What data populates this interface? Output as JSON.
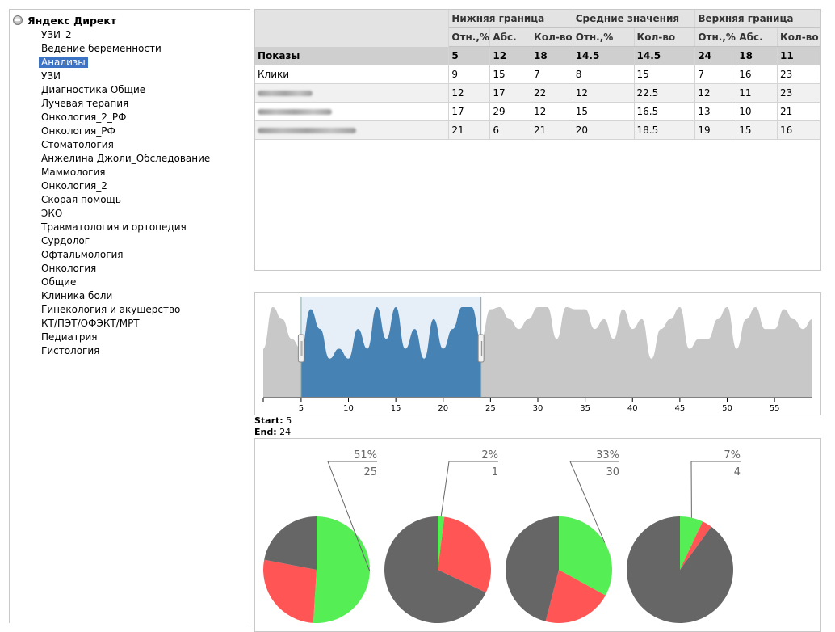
{
  "tree": {
    "root_label": "Яндекс Директ",
    "items": [
      {
        "label": "УЗИ_2"
      },
      {
        "label": "Ведение беременности"
      },
      {
        "label": "Анализы",
        "selected": true
      },
      {
        "label": "УЗИ"
      },
      {
        "label": "Диагностика Общие"
      },
      {
        "label": "Лучевая терапия"
      },
      {
        "label": "Онкология_2_РФ"
      },
      {
        "label": "Онкология_РФ"
      },
      {
        "label": "Стоматология"
      },
      {
        "label": "Анжелина Джоли_Обследование"
      },
      {
        "label": "Маммология"
      },
      {
        "label": "Онкология_2"
      },
      {
        "label": "Скорая помощь"
      },
      {
        "label": "ЭКО"
      },
      {
        "label": "Травматология и ортопедия"
      },
      {
        "label": "Сурдолог"
      },
      {
        "label": "Офтальмология"
      },
      {
        "label": "Онкология"
      },
      {
        "label": "Общие"
      },
      {
        "label": "Клиника боли"
      },
      {
        "label": "Гинекология и акушерство"
      },
      {
        "label": "КТ/ПЭТ/ОФЭКТ/МРТ"
      },
      {
        "label": "Педиатрия"
      },
      {
        "label": "Гистология"
      }
    ]
  },
  "table": {
    "groups": [
      "Нижняя граница",
      "Средние значения",
      "Верхняя граница"
    ],
    "subheaders": [
      "Отн.,%",
      "Абс.",
      "Кол-во",
      "Отн.,%",
      "Кол-во",
      "Отн.,%",
      "Абс.",
      "Кол-во"
    ],
    "rows": [
      {
        "label": "Показы",
        "values": [
          "5",
          "12",
          "18",
          "14.5",
          "14.5",
          "24",
          "18",
          "11"
        ],
        "kind": "total"
      },
      {
        "label": "Клики",
        "values": [
          "9",
          "15",
          "7",
          "8",
          "15",
          "7",
          "16",
          "23"
        ],
        "kind": "odd"
      },
      {
        "label": "",
        "values": [
          "12",
          "17",
          "22",
          "12",
          "22.5",
          "12",
          "11",
          "23"
        ],
        "kind": "even"
      },
      {
        "label": "",
        "values": [
          "17",
          "29",
          "12",
          "15",
          "16.5",
          "13",
          "10",
          "21"
        ],
        "kind": "odd"
      },
      {
        "label": "",
        "values": [
          "21",
          "6",
          "21",
          "20",
          "18.5",
          "19",
          "15",
          "16"
        ],
        "kind": "even"
      }
    ]
  },
  "range": {
    "start_label": "Start:",
    "start": 5,
    "end_label": "End:",
    "end": 24,
    "xlim": [
      1,
      59
    ],
    "ticks": [
      "5",
      "10",
      "15",
      "20",
      "25",
      "30",
      "35",
      "40",
      "45",
      "50",
      "55"
    ],
    "tick_values": [
      5,
      10,
      15,
      20,
      25,
      30,
      35,
      40,
      45,
      50,
      55
    ],
    "series": [
      12,
      17,
      15,
      13,
      12,
      16,
      14,
      11,
      12,
      11,
      14,
      12,
      18,
      13,
      17,
      12,
      14,
      11,
      15,
      12,
      14,
      17,
      18,
      13,
      16,
      17,
      15,
      14,
      15,
      18,
      18,
      13,
      18,
      16,
      16,
      14,
      15,
      13,
      16,
      14,
      15,
      11,
      14,
      15,
      18,
      12,
      13,
      13,
      15,
      17,
      12,
      15,
      17,
      14,
      14,
      16,
      15,
      14,
      15
    ],
    "colors": {
      "selected": "#4682b4",
      "unselected": "#c8c8c8",
      "window": "#e6eef7"
    }
  },
  "chart_data": {
    "type": "pie",
    "pies": [
      {
        "percent_label": "51%",
        "count_label": "25",
        "slices": [
          {
            "color": "#55ee55",
            "value": 51
          },
          {
            "color": "#ff5555",
            "value": 27
          },
          {
            "color": "#666666",
            "value": 22
          }
        ]
      },
      {
        "percent_label": "2%",
        "count_label": "1",
        "slices": [
          {
            "color": "#55ee55",
            "value": 2
          },
          {
            "color": "#ff5555",
            "value": 30
          },
          {
            "color": "#666666",
            "value": 68
          }
        ]
      },
      {
        "percent_label": "33%",
        "count_label": "30",
        "slices": [
          {
            "color": "#55ee55",
            "value": 33
          },
          {
            "color": "#ff5555",
            "value": 21
          },
          {
            "color": "#666666",
            "value": 46
          }
        ]
      },
      {
        "percent_label": "7%",
        "count_label": "4",
        "slices": [
          {
            "color": "#55ee55",
            "value": 7
          },
          {
            "color": "#ff5555",
            "value": 3
          },
          {
            "color": "#666666",
            "value": 90
          }
        ]
      }
    ]
  }
}
